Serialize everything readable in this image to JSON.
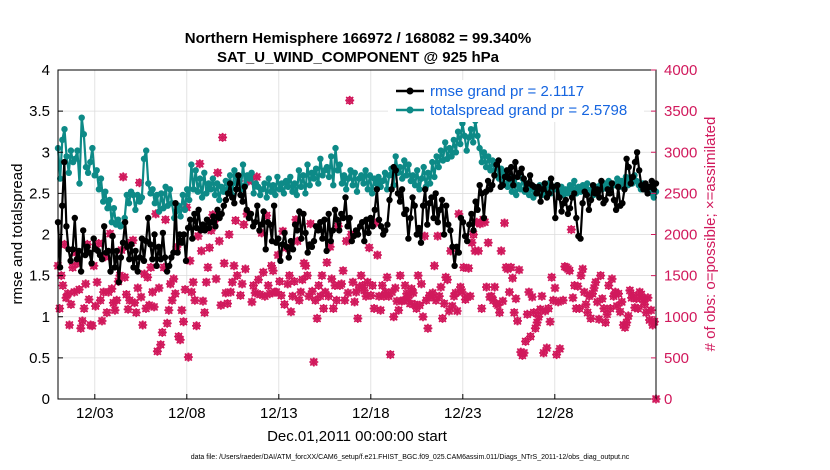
{
  "chart_data": {
    "type": "line",
    "title_line1": "Northern Hemisphere 166972 / 168082 = 99.340%",
    "title_line2": "SAT_U_WIND_COMPONENT @ 925 hPa",
    "xlabel": "Dec.01,2011 00:00:00 start",
    "ylabel_left": "rmse and totalspread",
    "ylabel_right": "# of obs: o=possible; ×=assimilated",
    "footnote": "data file: /Users/raeder/DAI/ATM_forcXX/CAM6_setup/f.e21.FHIST_BGC.f09_025.CAM6assim.011/Diags_NTrS_2011-12/obs_diag_output.nc",
    "xlim": [
      1,
      33.5
    ],
    "xticks": [
      3,
      8,
      13,
      18,
      23,
      28
    ],
    "xtick_labels": [
      "12/03",
      "12/08",
      "12/13",
      "12/18",
      "12/23",
      "12/28"
    ],
    "ylim_left": [
      0,
      4
    ],
    "yticks_left": [
      "0",
      "0.5",
      "1",
      "1.5",
      "2",
      "2.5",
      "3",
      "3.5",
      "4"
    ],
    "ylim_right": [
      0,
      4000
    ],
    "yticks_right": [
      "0",
      "500",
      "1000",
      "1500",
      "2000",
      "2500",
      "3000",
      "3500",
      "4000"
    ],
    "colors": {
      "rmse": "#000000",
      "spread": "#0d8a87",
      "obs": "#d1195c",
      "legend_text": "#1565e0",
      "grid": "#dcdcdc"
    },
    "series": [
      {
        "name": "rmse grand pr = 2.1117",
        "values": [
          2.15,
          1.6,
          2.35,
          2.88,
          2.1,
          1.82,
          1.68,
          1.82,
          2.2,
          1.7,
          1.8,
          1.55,
          2.05,
          1.75,
          1.85,
          1.78,
          1.65,
          1.95,
          1.82,
          1.8,
          1.75,
          1.7,
          2.1,
          1.78,
          1.8,
          1.55,
          1.98,
          1.6,
          1.8,
          1.42,
          1.72,
          1.9,
          2.15,
          1.85,
          1.7,
          1.88,
          1.6,
          1.8,
          1.55,
          1.72,
          1.95,
          1.68,
          1.92,
          2.2,
          1.88,
          1.7,
          2.0,
          1.62,
          1.85,
          1.7,
          2.02,
          1.72,
          1.55,
          1.62,
          1.72,
          1.78,
          2.38,
          1.78,
          2.0,
          1.9,
          2.0,
          1.68,
          2.08,
          2.18,
          1.95,
          2.25,
          2.08,
          2.3,
          2.05,
          2.12,
          2.05,
          2.18,
          2.08,
          2.15,
          2.22,
          2.1,
          2.3,
          2.2,
          2.25,
          2.35,
          2.42,
          2.5,
          2.62,
          2.45,
          2.38,
          2.55,
          2.72,
          2.48,
          2.4,
          2.58,
          2.3,
          2.2,
          2.25,
          2.1,
          2.15,
          2.35,
          2.05,
          2.12,
          2.28,
          1.82,
          2.15,
          2.12,
          1.92,
          2.35,
          1.9,
          1.95,
          1.68,
          1.88,
          2.02,
          1.85,
          1.72,
          1.92,
          1.82,
          2.12,
          2.05,
          2.28,
          1.95,
          2.25,
          2.02,
          1.78,
          1.88,
          1.85,
          1.92,
          2.1,
          2.05,
          2.15,
          1.95,
          2.18,
          1.8,
          2.25,
          1.92,
          2.05,
          2.3,
          2.18,
          2.05,
          2.25,
          2.2,
          2.45,
          2.1,
          2.2,
          1.92,
          1.98,
          2.05,
          2.0,
          2.1,
          2.15,
          1.92,
          2.18,
          2.02,
          2.2,
          2.1,
          2.3,
          2.55,
          2.18,
          2.1,
          2.0,
          2.05,
          2.12,
          2.42,
          2.55,
          2.82,
          2.78,
          2.5,
          2.4,
          2.55,
          2.25,
          2.3,
          1.95,
          2.2,
          2.45,
          2.35,
          2.0,
          2.08,
          1.9,
          2.35,
          2.55,
          2.12,
          2.38,
          2.45,
          2.2,
          2.5,
          2.15,
          2.3,
          2.42,
          2.0,
          2.35,
          2.12,
          2.05,
          1.85,
          1.62,
          1.85,
          1.78,
          2.2,
          2.15,
          1.98,
          1.92,
          2.12,
          2.25,
          2.05,
          2.4,
          2.3,
          2.6,
          2.5,
          2.2,
          2.52,
          2.65,
          2.55,
          2.6,
          2.72,
          2.85,
          2.9,
          2.58,
          2.6,
          2.7,
          2.78,
          2.68,
          2.82,
          2.6,
          2.88,
          2.7,
          2.75,
          2.8,
          2.68,
          2.55,
          2.62,
          2.72,
          2.6,
          2.58,
          2.5,
          2.58,
          2.4,
          2.55,
          2.62,
          2.45,
          2.5,
          2.68,
          2.58,
          2.2,
          2.6,
          2.45,
          2.28,
          2.38,
          2.42,
          2.25,
          2.32,
          2.45,
          2.5,
          2.2,
          1.98,
          1.95,
          2.38,
          2.52,
          2.48,
          2.3,
          2.42,
          2.6,
          2.5,
          2.55,
          2.45,
          2.65,
          2.38,
          2.42,
          2.55,
          2.5,
          2.62,
          2.42,
          2.3,
          2.58,
          2.35,
          2.38,
          2.55,
          2.92,
          2.82,
          2.62,
          2.7,
          2.88,
          3.0,
          2.78,
          2.6,
          2.55,
          2.62,
          2.5,
          2.58,
          2.65,
          2.55,
          2.62
        ]
      },
      {
        "name": "totalspread grand pr = 2.5798",
        "values": [
          3.05,
          2.68,
          3.15,
          3.28,
          2.95,
          2.75,
          3.02,
          2.88,
          2.92,
          3.02,
          2.62,
          3.42,
          3.22,
          2.82,
          2.75,
          2.88,
          3.05,
          2.72,
          2.78,
          2.55,
          2.68,
          2.4,
          2.52,
          2.32,
          2.42,
          2.15,
          2.32,
          2.12,
          2.18,
          2.1,
          2.12,
          2.2,
          2.48,
          2.38,
          2.52,
          2.48,
          2.3,
          2.48,
          2.4,
          2.45,
          2.92,
          3.02,
          2.62,
          2.5,
          2.55,
          2.38,
          2.48,
          2.28,
          2.5,
          2.32,
          2.58,
          2.35,
          2.55,
          2.38,
          2.2,
          2.28,
          2.35,
          2.22,
          2.48,
          2.3,
          2.55,
          2.42,
          2.85,
          2.55,
          2.78,
          2.52,
          2.68,
          2.45,
          2.75,
          2.5,
          2.62,
          2.55,
          2.68,
          2.48,
          2.62,
          2.42,
          2.58,
          2.52,
          2.65,
          2.55,
          2.72,
          2.48,
          2.78,
          2.62,
          2.7,
          2.55,
          2.85,
          2.6,
          2.72,
          2.68,
          2.75,
          2.5,
          2.62,
          2.58,
          2.48,
          2.55,
          2.62,
          2.45,
          2.68,
          2.52,
          2.6,
          2.48,
          2.7,
          2.55,
          2.62,
          2.5,
          2.65,
          2.58,
          2.7,
          2.52,
          2.62,
          2.48,
          2.78,
          2.58,
          2.72,
          2.5,
          2.85,
          2.6,
          2.75,
          2.68,
          2.8,
          2.62,
          2.92,
          2.72,
          2.78,
          2.82,
          2.7,
          2.95,
          2.6,
          3.05,
          2.78,
          2.85,
          2.62,
          2.72,
          2.55,
          2.68,
          2.78,
          2.6,
          2.75,
          2.52,
          2.68,
          2.72,
          2.62,
          2.78,
          2.55,
          2.72,
          2.5,
          2.68,
          2.62,
          2.7,
          2.58,
          2.65,
          2.75,
          2.55,
          2.72,
          2.8,
          2.6,
          2.95,
          2.75,
          2.82,
          2.68,
          2.9,
          2.72,
          2.85,
          2.65,
          2.72,
          2.6,
          2.78,
          2.55,
          2.68,
          2.82,
          2.58,
          2.75,
          2.62,
          2.88,
          2.7,
          2.95,
          2.82,
          3.02,
          2.9,
          3.12,
          2.92,
          3.05,
          2.95,
          3.15,
          3.0,
          3.25,
          3.1,
          3.35,
          3.2,
          3.02,
          3.18,
          3.28,
          3.12,
          3.38,
          3.2,
          3.05,
          2.88,
          3.0,
          2.82,
          2.95,
          2.78,
          2.9,
          2.72,
          2.85,
          2.68,
          2.8,
          2.62,
          2.75,
          2.58,
          2.7,
          2.52,
          2.65,
          2.48,
          2.6,
          2.55,
          2.68,
          2.52,
          2.62,
          2.48,
          2.58,
          2.45,
          2.55,
          2.5,
          2.6,
          2.48,
          2.58,
          2.52,
          2.62,
          2.5,
          2.58,
          2.55,
          2.6,
          2.52,
          2.58,
          2.48,
          2.55,
          2.5,
          2.6,
          2.55,
          2.65,
          2.5,
          2.58,
          2.52,
          2.6,
          2.55,
          2.62,
          2.5,
          2.55,
          2.48,
          2.58,
          2.52,
          2.6,
          2.55,
          2.62,
          2.58,
          2.65,
          2.55,
          2.62,
          2.6,
          2.68,
          2.58,
          2.65,
          2.62,
          2.7,
          2.6,
          2.68,
          2.62,
          2.72,
          2.65,
          2.6,
          2.55,
          2.62,
          2.58,
          2.52,
          2.55,
          2.5,
          2.45,
          2.52
        ]
      },
      {
        "name": "obs_assimilated",
        "values": [
          1620,
          1100,
          1500,
          1380,
          1880,
          1230,
          1280,
          900,
          1150,
          1600,
          1300,
          1780,
          1650,
          1330,
          860,
          950,
          1100,
          1400,
          1880,
          1210,
          900,
          890,
          1620,
          1130,
          1420,
          1890,
          1200,
          950,
          1300,
          1730,
          1050,
          1300,
          2010,
          1340,
          1170,
          1080,
          1200,
          1430,
          1500,
          1810,
          2700,
          1480,
          1270,
          1090,
          1200,
          1900,
          1930,
          1170,
          1050,
          1350,
          2630,
          1240,
          900,
          1520,
          1100,
          1480,
          1140,
          1600,
          1300,
          1120,
          2250,
          580,
          1350,
          660,
          810,
          1600,
          2180,
          920,
          1080,
          1400,
          1200,
          1460,
          1280,
          1850,
          760,
          720,
          1080,
          940,
          1330,
          2330,
          510,
          1680,
          1300,
          1420,
          1200,
          890,
          1980,
          2860,
          1800,
          1190,
          1050,
          1420,
          1600,
          1840,
          2050,
          2240,
          2160,
          1460,
          2750,
          1920,
          1140,
          3180,
          1650,
          1290,
          1160,
          2000,
          1300,
          1420,
          1620,
          2170,
          1500,
          2650,
          1260,
          1400,
          2120,
          1580,
          2250,
          2650,
          2700,
          1180,
          1380,
          1290,
          2700,
          1450,
          1270,
          2020,
          1540,
          1250,
          2230,
          1380,
          1280,
          1620,
          1560,
          1300,
          1300,
          1750,
          1430,
          1260,
          2040,
          1150,
          1840,
          1400,
          1500,
          1060,
          1250,
          1430,
          2180,
          1920,
          1200,
          1300,
          1450,
          1650,
          1620,
          1500,
          1250,
          2130,
          1310,
          450,
          1200,
          980,
          1380,
          1250,
          1500,
          1100,
          1300,
          1660,
          1250,
          1850,
          1460,
          1100,
          1380,
          1200,
          2100,
          1380,
          1400,
          1560,
          1200,
          1920,
          1290,
          3630,
          2000,
          1420,
          1180,
          1300,
          980,
          1360,
          1500,
          1380,
          1320,
          1250,
          1420,
          1840,
          1260,
          1380,
          1100,
          2140,
          1750,
          1250,
          1080,
          1380,
          1250,
          1300,
          1480,
          1250,
          540,
          1300,
          1000,
          1350,
          1190,
          1080,
          1500,
          1190,
          1200,
          1380,
          1280,
          1230,
          1160,
          1340,
          1290,
          1150,
          1100,
          1500,
          1140,
          1400,
          1000,
          1980,
          1200,
          860,
          1260,
          1240,
          1290,
          1620,
          1200,
          1980,
          1250,
          1360,
          980,
          1160,
          1480,
          1450,
          1070,
          1800,
          1130,
          1250,
          1290,
          1070,
          2250,
          1360,
          1300,
          1600,
          1210,
          1240,
          1590,
          1250,
          1900,
          2000,
          1800,
          2150,
          1800,
          2130,
          1100,
          2180,
          2150,
          1360,
          1900,
          1240,
          1250,
          1200,
          1360,
          1160,
          1140,
          1050,
          1800,
          1190,
          2140,
          1600,
          1580,
          1300,
          1600,
          1470,
          1050,
          1220,
          950,
          1570,
          570,
          530,
          560,
          700,
          1030,
          1300,
          760,
          1240,
          1050,
          860,
          930,
          1000,
          1090,
          1250,
          560,
          1070,
          620,
          1100,
          940,
          1480,
          1200,
          1350,
          540,
          1180,
          610,
          2500,
          1200,
          1610,
          1600,
          1580,
          1560,
          2060,
          1230,
          1380,
          1100,
          1370,
          1100,
          1500,
          1580,
          1300,
          1150,
          1050,
          1250,
          980,
          1280,
          1350,
          1420,
          1180,
          970,
          1500,
          1220,
          1100,
          930,
          1030,
          1380,
          1100,
          1460,
          1250,
          1300,
          1130,
          1280,
          1060,
          1180,
          900,
          870,
          930,
          1010,
          1320,
          1230,
          1260,
          1110,
          1220,
          1100,
          1300,
          1270,
          1210,
          1150,
          1050,
          1230,
          960,
          1080,
          900,
          940,
          0
        ]
      }
    ],
    "legend": [
      "rmse grand pr = 2.1117",
      "totalspread grand pr = 2.5798"
    ]
  }
}
